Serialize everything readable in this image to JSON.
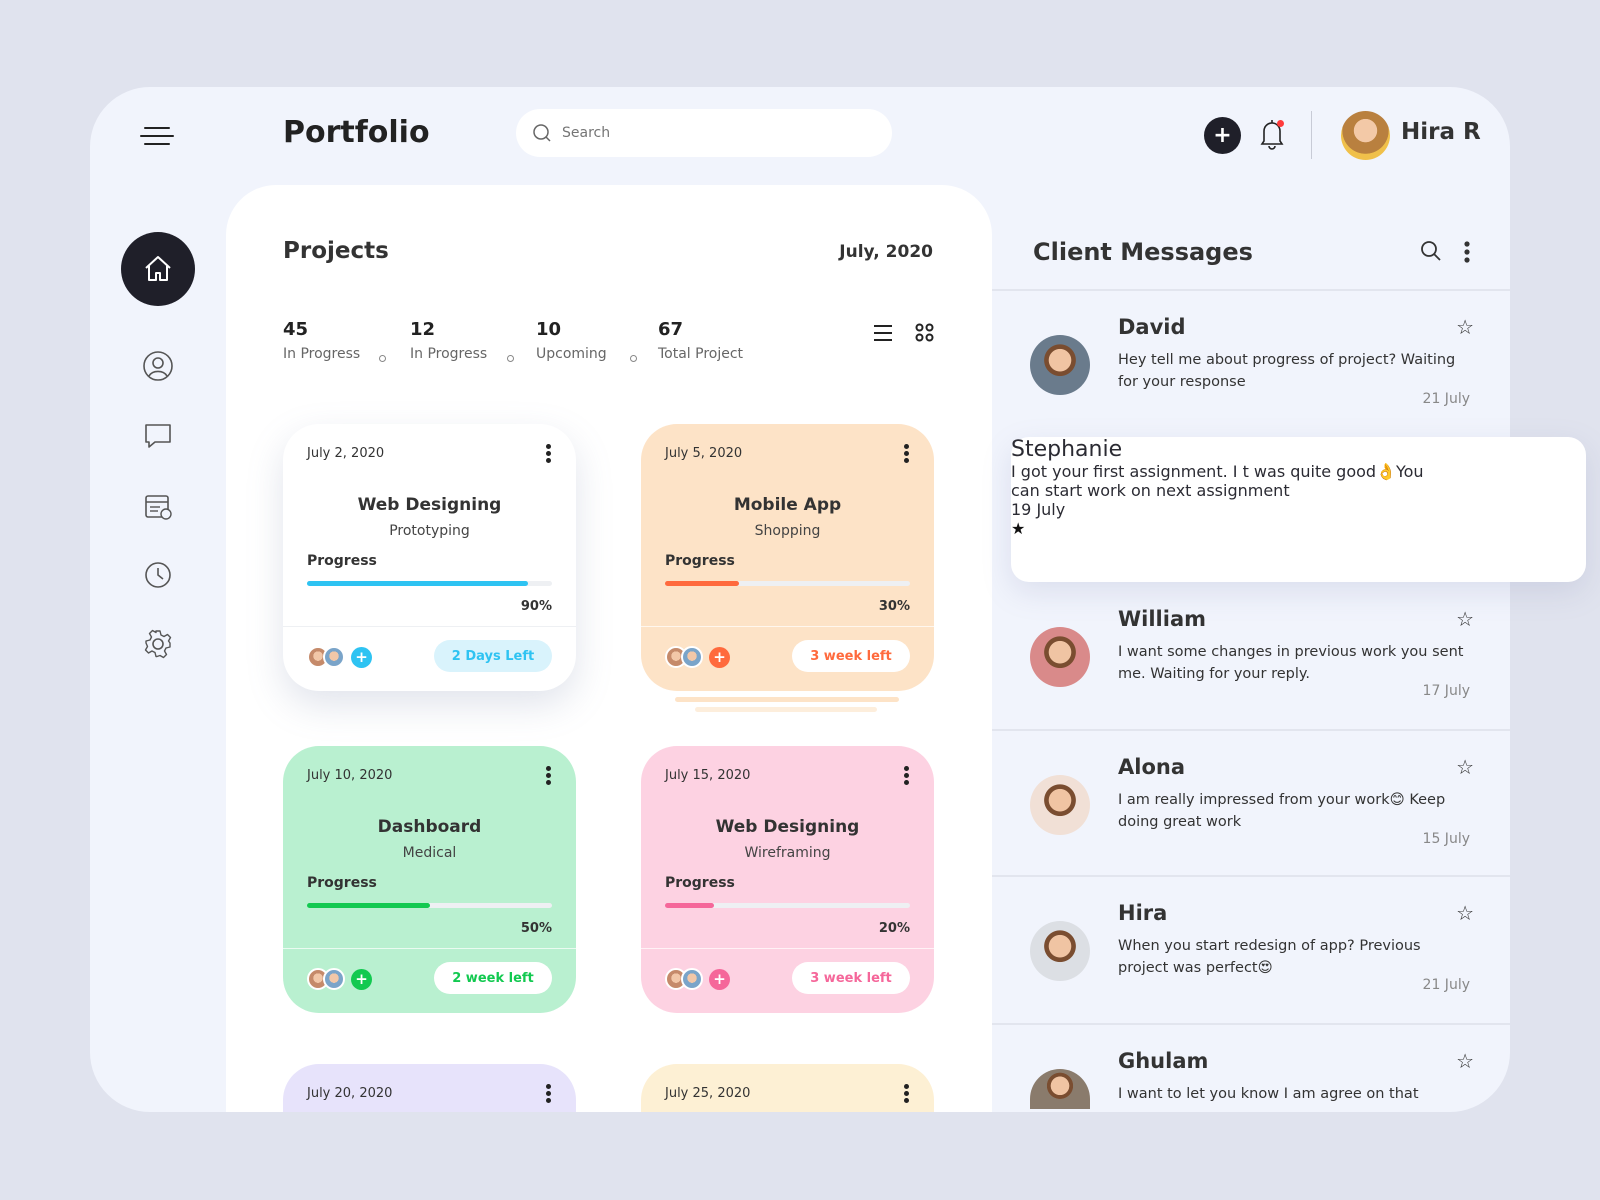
{
  "header": {
    "title": "Portfolio",
    "search_placeholder": "Search",
    "add_icon": "plus-icon",
    "bell_icon": "bell-icon",
    "user_name": "Hira R",
    "notification_color": "#ff3b3b"
  },
  "sidebar": {
    "items": [
      {
        "icon": "home-icon",
        "active": true
      },
      {
        "icon": "user-icon"
      },
      {
        "icon": "chat-icon"
      },
      {
        "icon": "calendar-icon"
      },
      {
        "icon": "clock-icon"
      },
      {
        "icon": "settings-icon"
      }
    ]
  },
  "projects": {
    "title": "Projects",
    "date": "July, 2020",
    "stats": [
      {
        "value": "45",
        "label": "In Progress"
      },
      {
        "value": "12",
        "label": "In Progress"
      },
      {
        "value": "10",
        "label": "Upcoming"
      },
      {
        "value": "67",
        "label": "Total Project"
      }
    ],
    "cards": [
      {
        "date": "July 2, 2020",
        "title": "Web Designing",
        "subtitle": "Prototyping",
        "progress_label": "Progress",
        "progress": 90,
        "percent": "90%",
        "time_left": "2 Days Left",
        "bg": "#ffffff",
        "accent": "#2ec3f2"
      },
      {
        "date": "July 5, 2020",
        "title": "Mobile App",
        "subtitle": "Shopping",
        "progress_label": "Progress",
        "progress": 30,
        "percent": "30%",
        "time_left": "3 week left",
        "bg": "#fde3c7",
        "accent": "#ff6a3d"
      },
      {
        "date": "July 10, 2020",
        "title": "Dashboard",
        "subtitle": "Medical",
        "progress_label": "Progress",
        "progress": 50,
        "percent": "50%",
        "time_left": "2 week left",
        "bg": "#b9f0d0",
        "accent": "#12c950"
      },
      {
        "date": "July 15, 2020",
        "title": "Web Designing",
        "subtitle": "Wireframing",
        "progress_label": "Progress",
        "progress": 20,
        "percent": "20%",
        "time_left": "3 week left",
        "bg": "#fdd2e2",
        "accent": "#f5679a"
      },
      {
        "date": "July 20, 2020",
        "bg": "#e7e3fb"
      },
      {
        "date": "July 25, 2020",
        "bg": "#fdf0d4"
      }
    ]
  },
  "messages": {
    "title": "Client Messages",
    "items": [
      {
        "name": "David",
        "text": "Hey tell me about progress of project? Waiting for your response",
        "date": "21 July",
        "starred": false
      },
      {
        "name": "Stephanie",
        "text": "I got your first assignment. I t was quite good👌You can start work on next assignment",
        "date": "19 July",
        "starred": true
      },
      {
        "name": "William",
        "text": "I want some changes in previous work you sent me. Waiting for your reply.",
        "date": "17 July",
        "starred": false
      },
      {
        "name": "Alona",
        "text": "I am really impressed from your work😊 Keep doing great work",
        "date": "15 July",
        "starred": false
      },
      {
        "name": "Hira",
        "text": "When you start redesign of app? Previous project was perfect😍",
        "date": "21 July",
        "starred": false
      },
      {
        "name": "Ghulam",
        "text": "I want to let you know I am agree on that",
        "date": "",
        "starred": false
      }
    ]
  }
}
